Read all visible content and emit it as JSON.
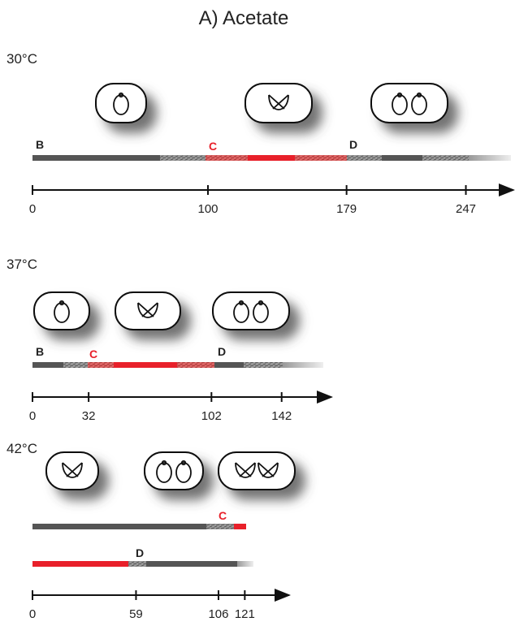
{
  "title": "A) Acetate",
  "panels": [
    {
      "temperature": "30°C",
      "bars": [
        [
          "B",
          "C",
          "D"
        ]
      ],
      "ticks": [
        0,
        100,
        179,
        247
      ]
    },
    {
      "temperature": "37°C",
      "bars": [
        [
          "B",
          "C",
          "D"
        ]
      ],
      "ticks": [
        0,
        32,
        102,
        142
      ]
    },
    {
      "temperature": "42°C",
      "bars": [
        [
          "C"
        ],
        [
          "D"
        ]
      ],
      "ticks": [
        0,
        59,
        106,
        121
      ]
    }
  ]
}
